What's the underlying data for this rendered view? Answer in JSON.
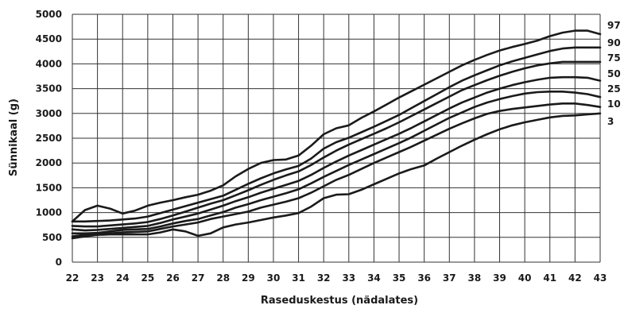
{
  "chart_data": {
    "type": "line",
    "xlabel": "Raseduskestus (nädalates)",
    "ylabel": "Sünnikaal (g)",
    "xlim": [
      22,
      43
    ],
    "ylim": [
      0,
      5000
    ],
    "grid": true,
    "legend": "right",
    "x_ticks": [
      "22",
      "23",
      "24",
      "25",
      "26",
      "27",
      "28",
      "29",
      "30",
      "31",
      "32",
      "33",
      "34",
      "35",
      "36",
      "37",
      "38",
      "39",
      "40",
      "41",
      "42",
      "43"
    ],
    "y_ticks": [
      "0",
      "500",
      "1000",
      "1500",
      "2000",
      "2500",
      "3000",
      "3500",
      "4000",
      "4500",
      "5000"
    ],
    "x": [
      22,
      22.5,
      23,
      23.5,
      24,
      24.5,
      25,
      25.5,
      26,
      26.5,
      27,
      27.5,
      28,
      28.5,
      29,
      29.5,
      30,
      30.5,
      31,
      31.5,
      32,
      32.5,
      33,
      33.5,
      34,
      34.5,
      35,
      35.5,
      36,
      36.5,
      37,
      37.5,
      38,
      38.5,
      39,
      39.5,
      40,
      40.5,
      41,
      41.5,
      42,
      42.5,
      43
    ],
    "series": [
      {
        "name": "97",
        "values": [
          820,
          1050,
          1140,
          1080,
          980,
          1040,
          1140,
          1200,
          1250,
          1310,
          1360,
          1440,
          1550,
          1730,
          1880,
          2000,
          2060,
          2070,
          2150,
          2350,
          2580,
          2700,
          2760,
          2910,
          3040,
          3180,
          3320,
          3450,
          3580,
          3710,
          3840,
          3970,
          4080,
          4180,
          4270,
          4340,
          4400,
          4470,
          4560,
          4630,
          4670,
          4670,
          4600
        ]
      },
      {
        "name": "90",
        "values": [
          820,
          820,
          830,
          840,
          860,
          880,
          920,
          990,
          1060,
          1130,
          1200,
          1270,
          1340,
          1460,
          1580,
          1690,
          1790,
          1870,
          1940,
          2090,
          2290,
          2420,
          2510,
          2620,
          2730,
          2850,
          2970,
          3110,
          3250,
          3390,
          3530,
          3660,
          3770,
          3870,
          3970,
          4050,
          4120,
          4190,
          4260,
          4310,
          4330,
          4330,
          4330
        ]
      },
      {
        "name": "75",
        "values": [
          730,
          720,
          720,
          740,
          760,
          780,
          810,
          870,
          940,
          1020,
          1100,
          1180,
          1250,
          1350,
          1450,
          1560,
          1660,
          1750,
          1830,
          1960,
          2110,
          2250,
          2370,
          2480,
          2590,
          2700,
          2820,
          2950,
          3080,
          3210,
          3340,
          3470,
          3570,
          3670,
          3760,
          3840,
          3910,
          3970,
          4010,
          4040,
          4040,
          4040,
          4040
        ]
      },
      {
        "name": "50",
        "values": [
          660,
          640,
          650,
          670,
          690,
          710,
          730,
          790,
          860,
          920,
          980,
          1060,
          1140,
          1230,
          1310,
          1400,
          1480,
          1560,
          1640,
          1760,
          1900,
          2030,
          2150,
          2260,
          2370,
          2480,
          2590,
          2710,
          2840,
          2970,
          3100,
          3220,
          3320,
          3420,
          3500,
          3570,
          3630,
          3680,
          3720,
          3730,
          3730,
          3720,
          3660
        ]
      },
      {
        "name": "25",
        "values": [
          580,
          580,
          590,
          620,
          650,
          660,
          670,
          720,
          780,
          830,
          870,
          940,
          1010,
          1100,
          1170,
          1250,
          1320,
          1390,
          1470,
          1590,
          1720,
          1840,
          1960,
          2070,
          2180,
          2290,
          2400,
          2520,
          2650,
          2780,
          2910,
          3020,
          3130,
          3220,
          3290,
          3350,
          3400,
          3430,
          3440,
          3440,
          3420,
          3390,
          3330
        ]
      },
      {
        "name": "10",
        "values": [
          520,
          550,
          570,
          580,
          600,
          610,
          620,
          670,
          720,
          760,
          800,
          870,
          920,
          970,
          1020,
          1100,
          1160,
          1220,
          1290,
          1400,
          1530,
          1660,
          1760,
          1880,
          2000,
          2110,
          2220,
          2330,
          2450,
          2570,
          2690,
          2800,
          2900,
          2990,
          3050,
          3090,
          3120,
          3150,
          3180,
          3200,
          3200,
          3170,
          3130
        ]
      },
      {
        "name": "3",
        "values": [
          480,
          520,
          550,
          560,
          560,
          560,
          560,
          600,
          660,
          620,
          530,
          580,
          700,
          760,
          800,
          850,
          900,
          940,
          990,
          1120,
          1290,
          1360,
          1370,
          1460,
          1570,
          1680,
          1790,
          1880,
          1950,
          2090,
          2220,
          2350,
          2470,
          2580,
          2680,
          2760,
          2820,
          2870,
          2920,
          2950,
          2960,
          2980,
          3000
        ]
      }
    ]
  }
}
